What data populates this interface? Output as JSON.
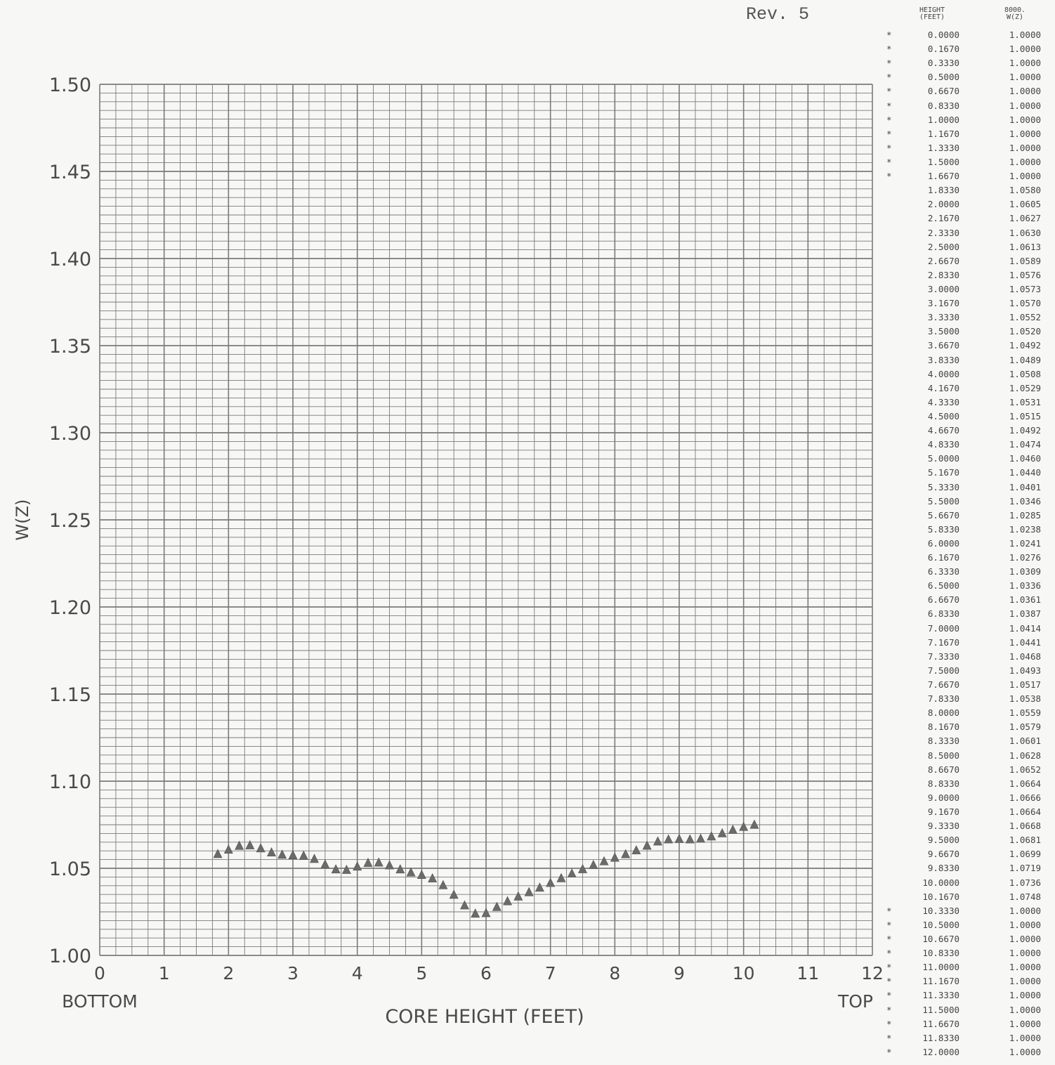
{
  "header": {
    "revision": "Rev. 5"
  },
  "table": {
    "col_height_label": [
      "HEIGHT",
      "(FEET)"
    ],
    "col_w_label": [
      "8000.",
      "W(Z)"
    ],
    "rows": [
      {
        "flag": "*",
        "height": "0.0000",
        "w": "1.0000"
      },
      {
        "flag": "*",
        "height": "0.1670",
        "w": "1.0000"
      },
      {
        "flag": "*",
        "height": "0.3330",
        "w": "1.0000"
      },
      {
        "flag": "*",
        "height": "0.5000",
        "w": "1.0000"
      },
      {
        "flag": "*",
        "height": "0.6670",
        "w": "1.0000"
      },
      {
        "flag": "*",
        "height": "0.8330",
        "w": "1.0000"
      },
      {
        "flag": "*",
        "height": "1.0000",
        "w": "1.0000"
      },
      {
        "flag": "*",
        "height": "1.1670",
        "w": "1.0000"
      },
      {
        "flag": "*",
        "height": "1.3330",
        "w": "1.0000"
      },
      {
        "flag": "*",
        "height": "1.5000",
        "w": "1.0000"
      },
      {
        "flag": "*",
        "height": "1.6670",
        "w": "1.0000"
      },
      {
        "flag": "",
        "height": "1.8330",
        "w": "1.0580"
      },
      {
        "flag": "",
        "height": "2.0000",
        "w": "1.0605"
      },
      {
        "flag": "",
        "height": "2.1670",
        "w": "1.0627"
      },
      {
        "flag": "",
        "height": "2.3330",
        "w": "1.0630"
      },
      {
        "flag": "",
        "height": "2.5000",
        "w": "1.0613"
      },
      {
        "flag": "",
        "height": "2.6670",
        "w": "1.0589"
      },
      {
        "flag": "",
        "height": "2.8330",
        "w": "1.0576"
      },
      {
        "flag": "",
        "height": "3.0000",
        "w": "1.0573"
      },
      {
        "flag": "",
        "height": "3.1670",
        "w": "1.0570"
      },
      {
        "flag": "",
        "height": "3.3330",
        "w": "1.0552"
      },
      {
        "flag": "",
        "height": "3.5000",
        "w": "1.0520"
      },
      {
        "flag": "",
        "height": "3.6670",
        "w": "1.0492"
      },
      {
        "flag": "",
        "height": "3.8330",
        "w": "1.0489"
      },
      {
        "flag": "",
        "height": "4.0000",
        "w": "1.0508"
      },
      {
        "flag": "",
        "height": "4.1670",
        "w": "1.0529"
      },
      {
        "flag": "",
        "height": "4.3330",
        "w": "1.0531"
      },
      {
        "flag": "",
        "height": "4.5000",
        "w": "1.0515"
      },
      {
        "flag": "",
        "height": "4.6670",
        "w": "1.0492"
      },
      {
        "flag": "",
        "height": "4.8330",
        "w": "1.0474"
      },
      {
        "flag": "",
        "height": "5.0000",
        "w": "1.0460"
      },
      {
        "flag": "",
        "height": "5.1670",
        "w": "1.0440"
      },
      {
        "flag": "",
        "height": "5.3330",
        "w": "1.0401"
      },
      {
        "flag": "",
        "height": "5.5000",
        "w": "1.0346"
      },
      {
        "flag": "",
        "height": "5.6670",
        "w": "1.0285"
      },
      {
        "flag": "",
        "height": "5.8330",
        "w": "1.0238"
      },
      {
        "flag": "",
        "height": "6.0000",
        "w": "1.0241"
      },
      {
        "flag": "",
        "height": "6.1670",
        "w": "1.0276"
      },
      {
        "flag": "",
        "height": "6.3330",
        "w": "1.0309"
      },
      {
        "flag": "",
        "height": "6.5000",
        "w": "1.0336"
      },
      {
        "flag": "",
        "height": "6.6670",
        "w": "1.0361"
      },
      {
        "flag": "",
        "height": "6.8330",
        "w": "1.0387"
      },
      {
        "flag": "",
        "height": "7.0000",
        "w": "1.0414"
      },
      {
        "flag": "",
        "height": "7.1670",
        "w": "1.0441"
      },
      {
        "flag": "",
        "height": "7.3330",
        "w": "1.0468"
      },
      {
        "flag": "",
        "height": "7.5000",
        "w": "1.0493"
      },
      {
        "flag": "",
        "height": "7.6670",
        "w": "1.0517"
      },
      {
        "flag": "",
        "height": "7.8330",
        "w": "1.0538"
      },
      {
        "flag": "",
        "height": "8.0000",
        "w": "1.0559"
      },
      {
        "flag": "",
        "height": "8.1670",
        "w": "1.0579"
      },
      {
        "flag": "",
        "height": "8.3330",
        "w": "1.0601"
      },
      {
        "flag": "",
        "height": "8.5000",
        "w": "1.0628"
      },
      {
        "flag": "",
        "height": "8.6670",
        "w": "1.0652"
      },
      {
        "flag": "",
        "height": "8.8330",
        "w": "1.0664"
      },
      {
        "flag": "",
        "height": "9.0000",
        "w": "1.0666"
      },
      {
        "flag": "",
        "height": "9.1670",
        "w": "1.0664"
      },
      {
        "flag": "",
        "height": "9.3330",
        "w": "1.0668"
      },
      {
        "flag": "",
        "height": "9.5000",
        "w": "1.0681"
      },
      {
        "flag": "",
        "height": "9.6670",
        "w": "1.0699"
      },
      {
        "flag": "",
        "height": "9.8330",
        "w": "1.0719"
      },
      {
        "flag": "",
        "height": "10.0000",
        "w": "1.0736"
      },
      {
        "flag": "",
        "height": "10.1670",
        "w": "1.0748"
      },
      {
        "flag": "*",
        "height": "10.3330",
        "w": "1.0000"
      },
      {
        "flag": "*",
        "height": "10.5000",
        "w": "1.0000"
      },
      {
        "flag": "*",
        "height": "10.6670",
        "w": "1.0000"
      },
      {
        "flag": "*",
        "height": "10.8330",
        "w": "1.0000"
      },
      {
        "flag": "*",
        "height": "11.0000",
        "w": "1.0000"
      },
      {
        "flag": "*",
        "height": "11.1670",
        "w": "1.0000"
      },
      {
        "flag": "*",
        "height": "11.3330",
        "w": "1.0000"
      },
      {
        "flag": "*",
        "height": "11.5000",
        "w": "1.0000"
      },
      {
        "flag": "*",
        "height": "11.6670",
        "w": "1.0000"
      },
      {
        "flag": "*",
        "height": "11.8330",
        "w": "1.0000"
      },
      {
        "flag": "*",
        "height": "12.0000",
        "w": "1.0000"
      }
    ]
  },
  "chart_data": {
    "type": "scatter",
    "marker": "triangle",
    "xlabel": "CORE HEIGHT (FEET)",
    "ylabel": "W(Z)",
    "xlim": [
      0,
      12
    ],
    "ylim": [
      1.0,
      1.5
    ],
    "x_ticks": [
      "0",
      "1",
      "2",
      "3",
      "4",
      "5",
      "6",
      "7",
      "8",
      "9",
      "10",
      "11",
      "12"
    ],
    "y_ticks": [
      "1.00",
      "1.05",
      "1.10",
      "1.15",
      "1.20",
      "1.25",
      "1.30",
      "1.35",
      "1.40",
      "1.45",
      "1.50"
    ],
    "x_end_labels": {
      "left": "BOTTOM",
      "right": "TOP"
    },
    "grid": true,
    "colors": {
      "grid": "#7a7a7a",
      "marker": "#6b6b6b",
      "text": "#4a4a4a"
    },
    "series": [
      {
        "x": [
          1.833,
          2.0,
          2.167,
          2.333,
          2.5,
          2.667,
          2.833,
          3.0,
          3.167,
          3.333,
          3.5,
          3.667,
          3.833,
          4.0,
          4.167,
          4.333,
          4.5,
          4.667,
          4.833,
          5.0,
          5.167,
          5.333,
          5.5,
          5.667,
          5.833,
          6.0,
          6.167,
          6.333,
          6.5,
          6.667,
          6.833,
          7.0,
          7.167,
          7.333,
          7.5,
          7.667,
          7.833,
          8.0,
          8.167,
          8.333,
          8.5,
          8.667,
          8.833,
          9.0,
          9.167,
          9.333,
          9.5,
          9.667,
          9.833,
          10.0,
          10.167
        ],
        "y": [
          1.058,
          1.0605,
          1.0627,
          1.063,
          1.0613,
          1.0589,
          1.0576,
          1.0573,
          1.057,
          1.0552,
          1.052,
          1.0492,
          1.0489,
          1.0508,
          1.0529,
          1.0531,
          1.0515,
          1.0492,
          1.0474,
          1.046,
          1.044,
          1.0401,
          1.0346,
          1.0285,
          1.0238,
          1.0241,
          1.0276,
          1.0309,
          1.0336,
          1.0361,
          1.0387,
          1.0414,
          1.0441,
          1.0468,
          1.0493,
          1.0517,
          1.0538,
          1.0559,
          1.0579,
          1.0601,
          1.0628,
          1.0652,
          1.0664,
          1.0666,
          1.0664,
          1.0668,
          1.0681,
          1.0699,
          1.0719,
          1.0736,
          1.0748
        ]
      }
    ]
  }
}
